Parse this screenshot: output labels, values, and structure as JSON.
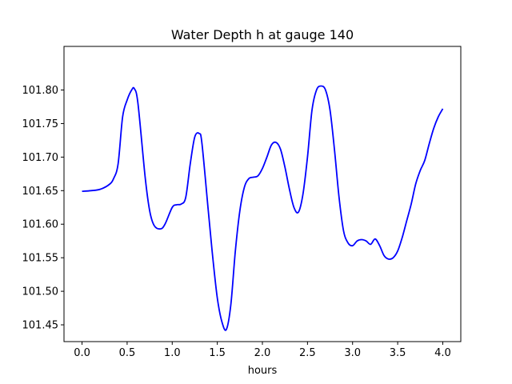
{
  "chart_data": {
    "type": "line",
    "title": "Water Depth h at gauge 140",
    "xlabel": "hours",
    "ylabel": "",
    "xlim": [
      -0.2,
      4.2
    ],
    "ylim": [
      101.425,
      101.865
    ],
    "xticks": [
      0.0,
      0.5,
      1.0,
      1.5,
      2.0,
      2.5,
      3.0,
      3.5,
      4.0
    ],
    "xtick_labels": [
      "0.0",
      "0.5",
      "1.0",
      "1.5",
      "2.0",
      "2.5",
      "3.0",
      "3.5",
      "4.0"
    ],
    "yticks": [
      101.45,
      101.5,
      101.55,
      101.6,
      101.65,
      101.7,
      101.75,
      101.8
    ],
    "ytick_labels": [
      "101.45",
      "101.50",
      "101.55",
      "101.60",
      "101.65",
      "101.70",
      "101.75",
      "101.80"
    ],
    "grid": false,
    "series": [
      {
        "color": "#0000ff",
        "x": [
          0.0,
          0.1,
          0.2,
          0.3,
          0.35,
          0.4,
          0.45,
          0.5,
          0.55,
          0.58,
          0.62,
          0.7,
          0.75,
          0.8,
          0.87,
          0.92,
          1.0,
          1.05,
          1.1,
          1.15,
          1.2,
          1.25,
          1.3,
          1.33,
          1.4,
          1.45,
          1.5,
          1.55,
          1.6,
          1.65,
          1.7,
          1.75,
          1.8,
          1.85,
          1.9,
          1.95,
          2.0,
          2.05,
          2.1,
          2.15,
          2.2,
          2.25,
          2.3,
          2.35,
          2.4,
          2.45,
          2.5,
          2.55,
          2.6,
          2.65,
          2.7,
          2.75,
          2.8,
          2.85,
          2.9,
          2.95,
          3.0,
          3.05,
          3.1,
          3.15,
          3.2,
          3.25,
          3.3,
          3.35,
          3.4,
          3.45,
          3.5,
          3.55,
          3.6,
          3.65,
          3.7,
          3.75,
          3.8,
          3.85,
          3.9,
          3.95,
          4.0
        ],
        "y": [
          101.649,
          101.65,
          101.652,
          101.659,
          101.668,
          101.69,
          101.76,
          101.785,
          101.8,
          101.802,
          101.78,
          101.67,
          101.62,
          101.598,
          101.593,
          101.6,
          101.625,
          101.629,
          101.63,
          101.64,
          101.69,
          101.73,
          101.735,
          101.72,
          101.62,
          101.55,
          101.49,
          101.455,
          101.443,
          101.48,
          101.56,
          101.62,
          101.655,
          101.668,
          101.67,
          101.672,
          101.683,
          101.7,
          101.718,
          101.722,
          101.712,
          101.685,
          101.652,
          101.625,
          101.618,
          101.645,
          101.7,
          101.77,
          101.8,
          101.806,
          101.8,
          101.77,
          101.71,
          101.64,
          101.59,
          101.572,
          101.568,
          101.575,
          101.577,
          101.575,
          101.57,
          101.578,
          101.568,
          101.553,
          101.548,
          101.55,
          101.56,
          101.58,
          101.605,
          101.63,
          101.66,
          101.68,
          101.695,
          101.72,
          101.743,
          101.76,
          101.772
        ]
      }
    ]
  }
}
